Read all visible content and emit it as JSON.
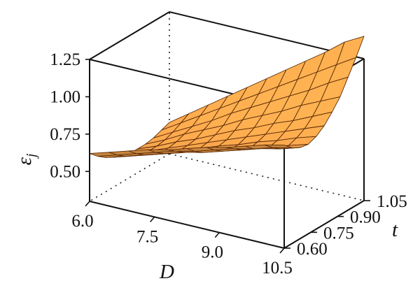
{
  "chart_data": {
    "type": "surface",
    "title": "",
    "xlabel": "D",
    "ylabel": "t",
    "zlabel_main": "ε",
    "zlabel_sub": "j",
    "x_ticks": [
      "6.0",
      "7.5",
      "9.0",
      "10.5"
    ],
    "y_ticks": [
      "0.60",
      "0.75",
      "0.90",
      "1.05"
    ],
    "z_ticks": [
      "0.50",
      "0.75",
      "1.00",
      "1.25"
    ],
    "xlim": [
      6.0,
      10.5
    ],
    "ylim": [
      0.6,
      1.05
    ],
    "zlim": [
      0.3,
      1.25
    ],
    "x": [
      6.0,
      6.45,
      6.9,
      7.35,
      7.8,
      8.25,
      8.7,
      9.15,
      9.6,
      10.05,
      10.5
    ],
    "y": [
      0.6,
      0.645,
      0.69,
      0.735,
      0.78,
      0.825,
      0.87,
      0.915,
      0.96,
      1.005,
      1.05
    ],
    "z": [
      [
        0.62,
        0.66,
        0.7,
        0.74,
        0.77,
        0.81,
        0.85,
        0.88,
        0.92,
        0.96,
        0.99
      ],
      [
        0.57,
        0.61,
        0.65,
        0.69,
        0.73,
        0.76,
        0.8,
        0.84,
        0.87,
        0.91,
        0.94
      ],
      [
        0.53,
        0.57,
        0.61,
        0.65,
        0.69,
        0.72,
        0.76,
        0.8,
        0.84,
        0.87,
        0.91
      ],
      [
        0.5,
        0.54,
        0.58,
        0.62,
        0.66,
        0.7,
        0.74,
        0.78,
        0.82,
        0.86,
        0.9
      ],
      [
        0.48,
        0.52,
        0.56,
        0.61,
        0.65,
        0.7,
        0.74,
        0.79,
        0.83,
        0.88,
        0.92
      ],
      [
        0.46,
        0.51,
        0.56,
        0.61,
        0.66,
        0.71,
        0.76,
        0.81,
        0.86,
        0.91,
        0.96
      ],
      [
        0.46,
        0.51,
        0.57,
        0.62,
        0.68,
        0.74,
        0.79,
        0.85,
        0.9,
        0.96,
        1.02
      ],
      [
        0.46,
        0.52,
        0.59,
        0.65,
        0.71,
        0.78,
        0.84,
        0.9,
        0.97,
        1.03,
        1.09
      ],
      [
        0.47,
        0.54,
        0.61,
        0.68,
        0.76,
        0.83,
        0.9,
        0.97,
        1.04,
        1.12,
        1.19
      ],
      [
        0.49,
        0.57,
        0.65,
        0.73,
        0.81,
        0.89,
        0.97,
        1.05,
        1.13,
        1.21,
        1.29
      ],
      [
        0.51,
        0.6,
        0.69,
        0.78,
        0.87,
        0.96,
        1.05,
        1.14,
        1.23,
        1.33,
        1.4
      ]
    ],
    "surface_color": "#f2a24a",
    "edge_color": "#5a2a08",
    "grid": false,
    "legend": "none"
  }
}
